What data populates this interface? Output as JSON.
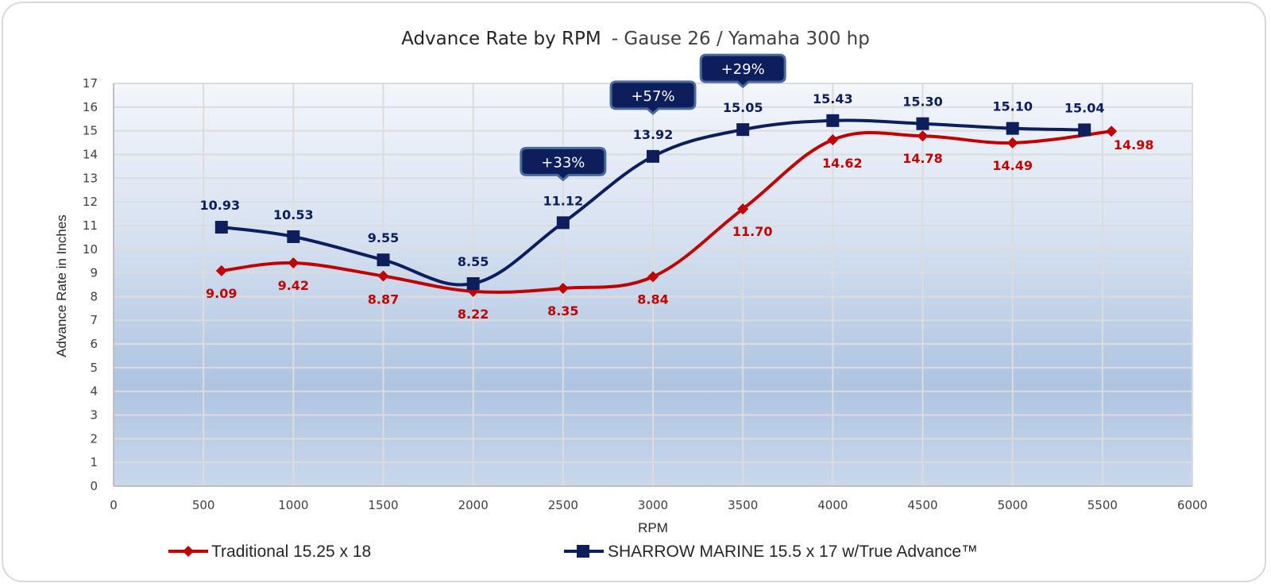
{
  "chart_data": {
    "type": "line",
    "title": "Advance Rate by RPM",
    "subtitle": "- Gause 26 / Yamaha 300 hp",
    "xlabel": "RPM",
    "ylabel": "Advance Rate in Inches",
    "xlim": [
      0,
      6000
    ],
    "ylim": [
      0,
      17
    ],
    "xticks": [
      "0",
      "500",
      "1000",
      "1500",
      "2000",
      "2500",
      "3000",
      "3500",
      "4000",
      "4500",
      "5000",
      "5500",
      "6000"
    ],
    "xtick_values": [
      0,
      500,
      1000,
      1500,
      2000,
      2500,
      3000,
      3500,
      4000,
      4500,
      5000,
      5500,
      6000
    ],
    "yticks": [
      "0",
      "1",
      "2",
      "3",
      "4",
      "5",
      "6",
      "7",
      "8",
      "9",
      "10",
      "11",
      "12",
      "13",
      "14",
      "15",
      "16",
      "17"
    ],
    "ytick_values": [
      0,
      1,
      2,
      3,
      4,
      5,
      6,
      7,
      8,
      9,
      10,
      11,
      12,
      13,
      14,
      15,
      16,
      17
    ],
    "grid": true,
    "legend_position": "bottom",
    "series": [
      {
        "name": "Traditional 15.25 x 18",
        "color": "#c00000",
        "marker": "diamond",
        "x": [
          600,
          1000,
          1500,
          2000,
          2500,
          3000,
          3500,
          4000,
          4500,
          5000,
          5550
        ],
        "values": [
          9.09,
          9.42,
          8.87,
          8.22,
          8.35,
          8.84,
          11.7,
          14.62,
          14.78,
          14.49,
          14.98
        ],
        "labels": [
          "9.09",
          "9.42",
          "8.87",
          "8.22",
          "8.35",
          "8.84",
          "11.70",
          "14.62",
          "14.78",
          "14.49",
          "14.98"
        ]
      },
      {
        "name": "SHARROW MARINE 15.5 x 17 w/True Advance™",
        "color": "#0c1f5c",
        "marker": "square",
        "x": [
          600,
          1000,
          1500,
          2000,
          2500,
          3000,
          3500,
          4000,
          4500,
          5000,
          5400
        ],
        "values": [
          10.93,
          10.53,
          9.55,
          8.55,
          11.12,
          13.92,
          15.05,
          15.43,
          15.3,
          15.1,
          15.04
        ],
        "labels": [
          "10.93",
          "10.53",
          "9.55",
          "8.55",
          "11.12",
          "13.92",
          "15.05",
          "15.43",
          "15.30",
          "15.10",
          "15.04"
        ]
      }
    ],
    "annotations": [
      {
        "text": "+33%",
        "x": 2500,
        "y": 11.12
      },
      {
        "text": "+57%",
        "x": 3000,
        "y": 13.92
      },
      {
        "text": "+29%",
        "x": 3500,
        "y": 15.05
      }
    ]
  },
  "colors": {
    "traditional": "#c00000",
    "sharrow": "#0c1f5c",
    "plot_top": "#f3f6fb",
    "plot_mid": "#aec4e1",
    "plot_bottom": "#c8d7ea",
    "grid": "#d9d9d9"
  }
}
